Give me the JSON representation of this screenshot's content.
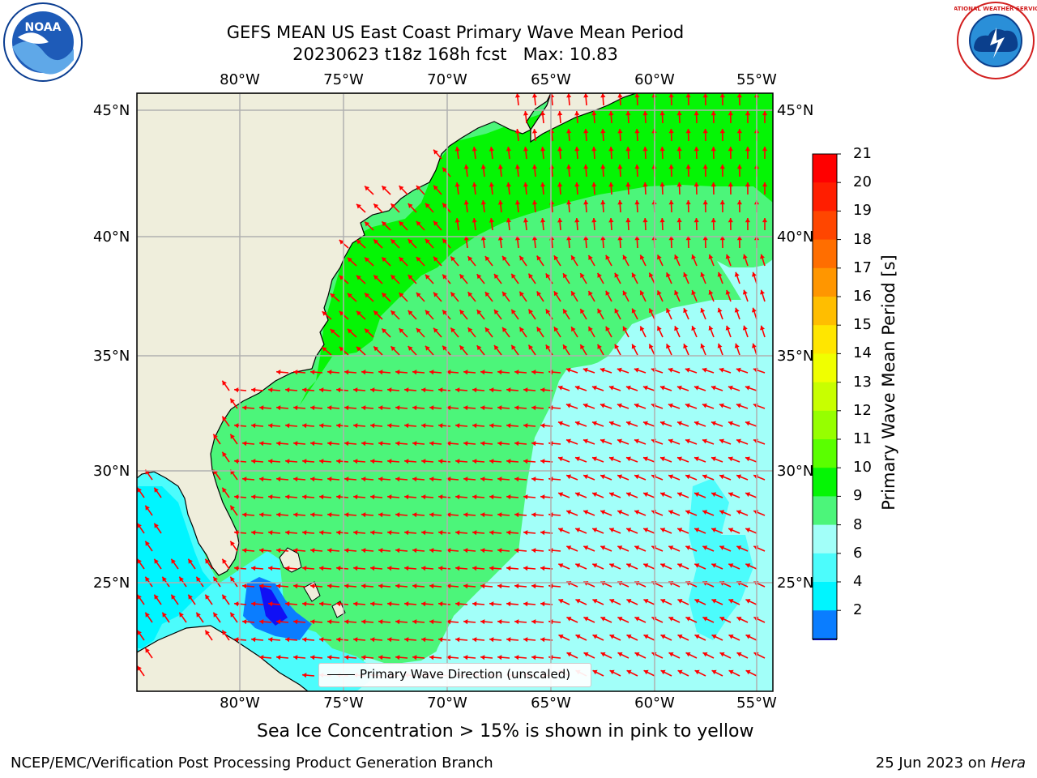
{
  "title": {
    "line1": "GEFS MEAN US East Coast Primary Wave Mean Period",
    "line2": "20230623 t18z 168h fcst   Max: 10.83"
  },
  "map": {
    "lon_ticks": [
      "80°W",
      "75°W",
      "70°W",
      "65°W",
      "60°W",
      "55°W"
    ],
    "lat_ticks": [
      "45°N",
      "40°N",
      "35°N",
      "30°N",
      "25°N"
    ],
    "colors": {
      "land": "#efeedc",
      "band_9_10": "#4cf57a",
      "band_10_11": "#05f505",
      "band_8_9": "#a2fff9",
      "band_6_8": "#4cfcfc",
      "band_4_6": "#00f5ff",
      "band_2_4": "#0a7dff",
      "below_2": "#1010f5",
      "arrow": "#ff0000",
      "gridline": "#b0b0b0"
    },
    "legend": "Primary Wave Direction (unscaled)"
  },
  "colorbar": {
    "title": "Primary Wave Mean Period [s]",
    "labels": [
      "21",
      "20",
      "19",
      "18",
      "17",
      "16",
      "15",
      "14",
      "13",
      "12",
      "11",
      "10",
      "9",
      "8",
      "6",
      "4",
      "2"
    ],
    "colors": [
      "#ff0000",
      "#ff1e00",
      "#ff4600",
      "#ff6e00",
      "#ff9600",
      "#ffbe00",
      "#ffe600",
      "#f0ff00",
      "#c8ff00",
      "#96ff00",
      "#5aff00",
      "#05f505",
      "#4cf57a",
      "#a2fff9",
      "#4cfcfc",
      "#00f5ff",
      "#0a7dff"
    ],
    "extend_color": "#1010f5"
  },
  "logos": {
    "noaa_text": "NOAA",
    "nws_text": "NATIONAL WEATHER SERVICE"
  },
  "bottom_note": "Sea Ice Concentration > 15% is shown in pink to yellow",
  "footer": {
    "left": "NCEP/EMC/Verification Post Processing Product Generation Branch",
    "right_date": "25 Jun 2023 on ",
    "right_machine": "Hera"
  }
}
